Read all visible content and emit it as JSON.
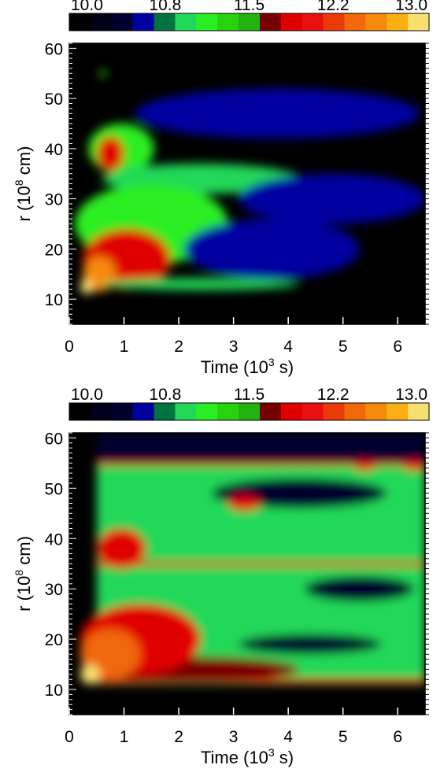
{
  "chart_data": [
    {
      "type": "heatmap",
      "xlabel": "Time (10",
      "xlabel_exp": "3",
      "xlabel_tail": " s)",
      "ylabel": "r (10",
      "ylabel_exp": "8",
      "ylabel_tail": " cm)",
      "xlim": [
        0,
        6.5
      ],
      "ylim": [
        5,
        61
      ],
      "xticks": [
        {
          "value": 0,
          "label": "0"
        },
        {
          "value": 1,
          "label": "1"
        },
        {
          "value": 2,
          "label": "2"
        },
        {
          "value": 3,
          "label": "3"
        },
        {
          "value": 4,
          "label": "4"
        },
        {
          "value": 5,
          "label": "5"
        },
        {
          "value": 6,
          "label": "6"
        }
      ],
      "yticks": [
        {
          "value": 10,
          "label": "10"
        },
        {
          "value": 20,
          "label": "20"
        },
        {
          "value": 30,
          "label": "30"
        },
        {
          "value": 40,
          "label": "40"
        },
        {
          "value": 50,
          "label": "50"
        },
        {
          "value": 60,
          "label": "60"
        }
      ],
      "colorbar": {
        "range": [
          10.0,
          13.0
        ],
        "tick_labels": [
          {
            "value": 10.0,
            "label": "10.0"
          },
          {
            "value": 10.8,
            "label": "10.8"
          },
          {
            "value": 11.5,
            "label": "11.5"
          },
          {
            "value": 12.2,
            "label": "12.2"
          },
          {
            "value": 13.0,
            "label": "13.0"
          }
        ],
        "colors": [
          "#000000",
          "#000018",
          "#00002e",
          "#0000a0",
          "#00733e",
          "#22d858",
          "#2aee24",
          "#28d20e",
          "#23b212",
          "#780000",
          "#e00000",
          "#e81010",
          "#ea3a06",
          "#f06808",
          "#f58a0a",
          "#f8b014",
          "#f8e070"
        ]
      },
      "features": [
        {
          "shape": "ellipse",
          "x": 0.62,
          "y": 55,
          "rx": 0.05,
          "ry": 1,
          "level": 11.3
        },
        {
          "shape": "ellipse",
          "x": 3.8,
          "y": 47,
          "rx": 2.6,
          "ry": 5,
          "level": 10.55
        },
        {
          "shape": "ellipse",
          "x": 0.95,
          "y": 40,
          "rx": 0.6,
          "ry": 5,
          "level": 11.1
        },
        {
          "shape": "ellipse",
          "x": 0.75,
          "y": 39,
          "rx": 0.25,
          "ry": 3.5,
          "level": 11.85
        },
        {
          "shape": "ellipse",
          "x": 2.4,
          "y": 34,
          "rx": 1.8,
          "ry": 3,
          "level": 10.9
        },
        {
          "shape": "ellipse",
          "x": 4.8,
          "y": 30,
          "rx": 1.7,
          "ry": 5,
          "level": 10.6
        },
        {
          "shape": "ellipse",
          "x": 1.5,
          "y": 25,
          "rx": 1.4,
          "ry": 8,
          "level": 11.1
        },
        {
          "shape": "ellipse",
          "x": 3.7,
          "y": 20,
          "rx": 1.6,
          "ry": 6,
          "level": 10.6
        },
        {
          "shape": "ellipse",
          "x": 1.05,
          "y": 18,
          "rx": 0.8,
          "ry": 6,
          "level": 11.9
        },
        {
          "shape": "ellipse",
          "x": 0.55,
          "y": 15,
          "rx": 0.3,
          "ry": 3.5,
          "level": 12.5
        },
        {
          "shape": "ellipse",
          "x": 0.32,
          "y": 12.5,
          "rx": 0.12,
          "ry": 1.5,
          "level": 12.9
        },
        {
          "shape": "ellipse",
          "x": 2.4,
          "y": 13,
          "rx": 1.8,
          "ry": 1.2,
          "level": 10.95
        }
      ]
    },
    {
      "type": "heatmap",
      "xlabel": "Time (10",
      "xlabel_exp": "3",
      "xlabel_tail": " s)",
      "ylabel": "r (10",
      "ylabel_exp": "8",
      "ylabel_tail": " cm)",
      "xlim": [
        0,
        6.5
      ],
      "ylim": [
        5,
        61
      ],
      "xticks": [
        {
          "value": 0,
          "label": "0"
        },
        {
          "value": 1,
          "label": "1"
        },
        {
          "value": 2,
          "label": "2"
        },
        {
          "value": 3,
          "label": "3"
        },
        {
          "value": 4,
          "label": "4"
        },
        {
          "value": 5,
          "label": "5"
        },
        {
          "value": 6,
          "label": "6"
        }
      ],
      "yticks": [
        {
          "value": 10,
          "label": "10"
        },
        {
          "value": 20,
          "label": "20"
        },
        {
          "value": 30,
          "label": "30"
        },
        {
          "value": 40,
          "label": "40"
        },
        {
          "value": 50,
          "label": "50"
        },
        {
          "value": 60,
          "label": "60"
        }
      ],
      "colorbar": {
        "range": [
          10.0,
          13.0
        ],
        "tick_labels": [
          {
            "value": 10.0,
            "label": "10.0"
          },
          {
            "value": 10.8,
            "label": "10.8"
          },
          {
            "value": 11.5,
            "label": "11.5"
          },
          {
            "value": 12.2,
            "label": "12.2"
          },
          {
            "value": 13.0,
            "label": "13.0"
          }
        ],
        "colors": [
          "#000000",
          "#000018",
          "#00002e",
          "#0000a0",
          "#00733e",
          "#22d858",
          "#2aee24",
          "#28d20e",
          "#23b212",
          "#780000",
          "#e00000",
          "#e81010",
          "#ea3a06",
          "#f06808",
          "#f58a0a",
          "#f8b014",
          "#f8e070"
        ]
      },
      "features": [
        {
          "shape": "rect",
          "x0": 0.5,
          "x1": 6.5,
          "y0": 11,
          "y1": 55,
          "level": 10.95
        },
        {
          "shape": "rect",
          "x0": 0.5,
          "x1": 6.5,
          "y0": 55,
          "y1": 61,
          "level": 10.5
        },
        {
          "shape": "ellipse",
          "x": 4.2,
          "y": 49,
          "rx": 1.6,
          "ry": 3,
          "level": 10.4
        },
        {
          "shape": "ellipse",
          "x": 5.3,
          "y": 30,
          "rx": 1.0,
          "ry": 2.5,
          "level": 10.45
        },
        {
          "shape": "ellipse",
          "x": 4.4,
          "y": 19,
          "rx": 1.3,
          "ry": 2,
          "level": 10.5
        },
        {
          "shape": "rect",
          "x0": 0.5,
          "x1": 6.5,
          "y0": 54.5,
          "y1": 55.2,
          "level": 11.9
        },
        {
          "shape": "rect",
          "x0": 0.5,
          "x1": 6.5,
          "y0": 34.5,
          "y1": 35.4,
          "level": 11.9
        },
        {
          "shape": "rect",
          "x0": 0.4,
          "x1": 6.5,
          "y0": 11.2,
          "y1": 12.2,
          "level": 11.9
        },
        {
          "shape": "ellipse",
          "x": 0.95,
          "y": 38,
          "rx": 0.45,
          "ry": 4,
          "level": 11.8
        },
        {
          "shape": "ellipse",
          "x": 2.3,
          "y": 14,
          "rx": 1.9,
          "ry": 2.5,
          "level": 11.7
        },
        {
          "shape": "ellipse",
          "x": 1.3,
          "y": 20,
          "rx": 1.1,
          "ry": 7,
          "level": 11.8
        },
        {
          "shape": "ellipse",
          "x": 0.75,
          "y": 17,
          "rx": 0.55,
          "ry": 5,
          "level": 12.4
        },
        {
          "shape": "ellipse",
          "x": 0.38,
          "y": 13,
          "rx": 0.18,
          "ry": 2,
          "level": 12.9
        },
        {
          "shape": "ellipse",
          "x": 5.4,
          "y": 54.5,
          "rx": 0.2,
          "ry": 1,
          "level": 12.1
        },
        {
          "shape": "ellipse",
          "x": 6.3,
          "y": 54.5,
          "rx": 0.2,
          "ry": 1,
          "level": 12.1
        },
        {
          "shape": "ellipse",
          "x": 3.2,
          "y": 47,
          "rx": 0.3,
          "ry": 1.5,
          "level": 11.9
        }
      ]
    }
  ]
}
